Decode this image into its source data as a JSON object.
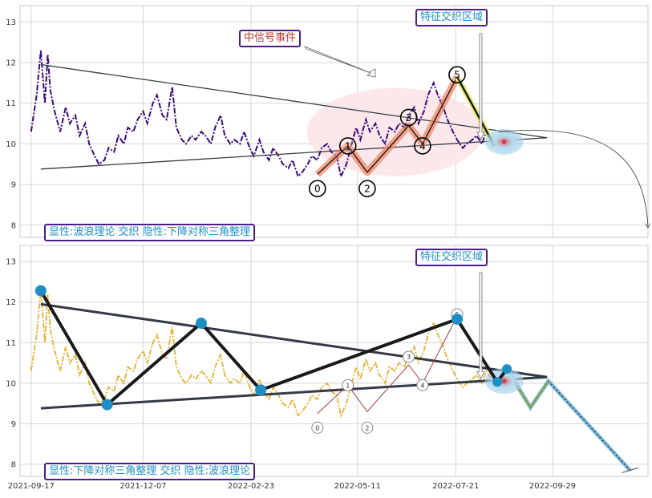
{
  "colors": {
    "top_price": "#3a0a7a",
    "bottom_price": "#e8b030",
    "triangle": "#333a44",
    "zigzag": "#1a1a1a",
    "pivot": "#1e8fc6",
    "wave_fill": "#f08060",
    "wave_leg5": "#e6ef6a",
    "ellipse": "#fbe3e6",
    "target_glow": "#9fd0ea",
    "forecast_fill": "#6ab5de",
    "small_fill": "#8aa850",
    "label_box": "#4b1c8a",
    "label_blue": "#1e8fc6",
    "label_red": "#c0392b"
  },
  "icons": {
    "wave_point": "circled-number",
    "pivot": "filled-circle-marker",
    "target": "radial-dot"
  },
  "chart_data": [
    {
      "type": "line",
      "panel": "top",
      "y_ticks": [
        8,
        9,
        10,
        11,
        12,
        13
      ],
      "ylim": [
        7.7,
        13.4
      ],
      "x_range": [
        "2021-09-09",
        "2022-12-07"
      ],
      "grid": true,
      "series": [
        {
          "x": [
            "2021-09-17",
            "2021-09-21",
            "2021-09-24",
            "2021-09-27",
            "2021-09-29",
            "2021-10-01",
            "2021-10-04",
            "2021-10-08",
            "2021-10-12",
            "2021-10-15",
            "2021-10-19",
            "2021-10-22",
            "2021-10-26",
            "2021-10-29",
            "2021-11-02",
            "2021-11-05",
            "2021-11-09",
            "2021-11-12",
            "2021-11-16",
            "2021-11-19",
            "2021-11-23",
            "2021-11-26",
            "2021-11-30",
            "2021-12-03",
            "2021-12-07",
            "2021-12-10",
            "2021-12-14",
            "2021-12-17",
            "2021-12-21",
            "2021-12-24",
            "2021-12-28",
            "2021-12-31",
            "2022-01-04",
            "2022-01-07",
            "2022-01-11",
            "2022-01-14",
            "2022-01-18",
            "2022-01-21",
            "2022-01-25",
            "2022-01-28",
            "2022-02-01",
            "2022-02-04",
            "2022-02-08",
            "2022-02-11",
            "2022-02-15",
            "2022-02-18",
            "2022-02-22",
            "2022-02-25",
            "2022-03-01",
            "2022-03-04",
            "2022-03-08",
            "2022-03-11",
            "2022-03-15",
            "2022-03-18",
            "2022-03-22",
            "2022-03-25",
            "2022-03-29",
            "2022-04-01",
            "2022-04-05",
            "2022-04-08",
            "2022-04-12",
            "2022-04-15",
            "2022-04-19",
            "2022-04-22",
            "2022-04-26",
            "2022-04-29",
            "2022-05-03",
            "2022-05-06",
            "2022-05-10",
            "2022-05-13",
            "2022-05-17",
            "2022-05-20",
            "2022-05-24",
            "2022-05-27",
            "2022-05-31",
            "2022-06-03",
            "2022-06-07",
            "2022-06-10",
            "2022-06-14",
            "2022-06-17",
            "2022-06-21",
            "2022-06-24",
            "2022-06-28",
            "2022-07-01",
            "2022-07-05",
            "2022-07-08",
            "2022-07-12",
            "2022-07-15",
            "2022-07-19",
            "2022-07-22",
            "2022-07-26",
            "2022-07-29",
            "2022-08-02",
            "2022-08-05",
            "2022-08-09",
            "2022-08-12",
            "2022-08-16"
          ],
          "values": [
            10.3,
            11.2,
            12.3,
            11.0,
            12.2,
            11.3,
            10.8,
            10.3,
            10.9,
            10.5,
            10.7,
            10.2,
            10.5,
            10.0,
            9.7,
            9.5,
            9.6,
            9.9,
            9.8,
            10.2,
            10.0,
            10.4,
            10.3,
            10.6,
            10.8,
            10.5,
            11.0,
            11.2,
            10.7,
            10.6,
            11.4,
            10.4,
            10.1,
            10.0,
            10.2,
            10.1,
            10.3,
            10.2,
            10.0,
            10.4,
            10.7,
            10.2,
            10.0,
            10.1,
            10.0,
            10.3,
            9.9,
            9.7,
            10.1,
            9.8,
            9.6,
            9.9,
            9.7,
            9.5,
            9.4,
            9.6,
            9.2,
            9.3,
            9.5,
            9.7,
            9.6,
            9.9,
            10.0,
            9.8,
            9.7,
            9.2,
            9.5,
            9.9,
            10.4,
            10.1,
            10.6,
            10.3,
            10.5,
            10.2,
            10.0,
            10.4,
            10.3,
            10.5,
            10.4,
            10.7,
            10.9,
            10.5,
            10.8,
            11.2,
            11.5,
            11.2,
            10.9,
            10.6,
            10.3,
            10.1,
            9.9,
            10.0,
            10.1,
            10.2,
            10.0,
            10.3,
            10.1
          ]
        }
      ],
      "triangle": [
        {
          "x": [
            "2021-09-24",
            "2022-09-25"
          ],
          "y": [
            11.95,
            10.15
          ]
        },
        {
          "x": [
            "2021-09-24",
            "2022-09-25"
          ],
          "y": [
            9.38,
            10.15
          ]
        }
      ],
      "waves": {
        "labels": [
          "0",
          "1",
          "2",
          "3",
          "4",
          "5"
        ],
        "x": [
          "2022-04-12",
          "2022-05-04",
          "2022-05-18",
          "2022-06-17",
          "2022-06-27",
          "2022-07-22"
        ],
        "y": [
          9.25,
          9.95,
          9.3,
          10.45,
          10.0,
          11.65
        ],
        "label_y": [
          8.9,
          9.95,
          8.9,
          10.65,
          9.95,
          11.7
        ]
      },
      "wave5_leg": {
        "x": [
          "2022-07-22",
          "2022-08-18"
        ],
        "y": [
          11.65,
          9.95
        ]
      },
      "target": {
        "x": "2022-08-25",
        "y": 10.05
      },
      "forecast_curve": {
        "x": [
          "2022-08-21",
          "2022-12-07"
        ],
        "y": [
          10.3,
          7.95
        ]
      },
      "annotations": {
        "signal_event": "中信号事件",
        "region_top": "特征交织区域",
        "bottom_label": "显性:波浪理论 交织 隐性:下降对称三角整理"
      }
    },
    {
      "type": "line",
      "panel": "bottom",
      "y_ticks": [
        8,
        9,
        10,
        11,
        12,
        13
      ],
      "ylim": [
        7.7,
        13.4
      ],
      "x_range": [
        "2021-09-09",
        "2022-12-07"
      ],
      "x_ticks": [
        "2021-09-17",
        "2021-12-07",
        "2022-02-23",
        "2022-05-11",
        "2022-07-21",
        "2022-09-29"
      ],
      "grid": true,
      "zigzag": {
        "x": [
          "2021-09-24",
          "2021-11-11",
          "2022-01-18",
          "2022-03-02",
          "2022-07-22",
          "2022-08-20",
          "2022-08-27"
        ],
        "y": [
          12.28,
          9.47,
          11.48,
          9.83,
          11.58,
          10.03,
          10.35
        ]
      },
      "forecast_path": {
        "x": [
          "2022-08-27",
          "2022-09-13",
          "2022-09-26",
          "2022-11-24"
        ],
        "y": [
          10.35,
          9.4,
          10.05,
          7.85
        ]
      },
      "annotations": {
        "region_top": "特征交织区域",
        "bottom_label": "显性:下降对称三角整理 交织 隐性:波浪理论"
      }
    }
  ]
}
